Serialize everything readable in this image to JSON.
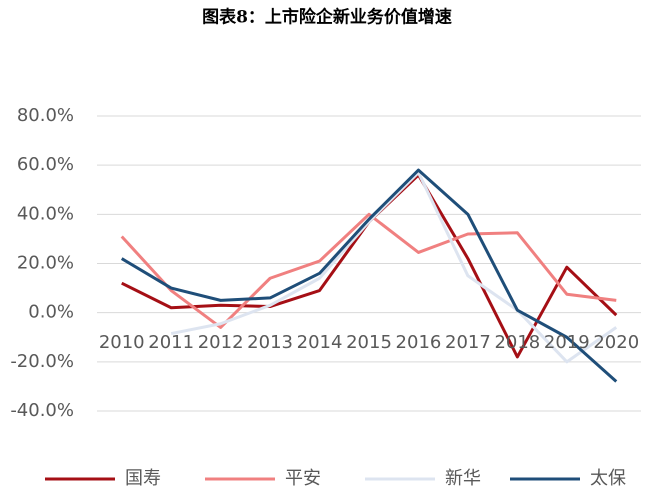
{
  "chart_data": {
    "type": "line",
    "title": "图表8：上市险企新业务价值增速",
    "categories": [
      "2010",
      "2011",
      "2012",
      "2013",
      "2014",
      "2015",
      "2016",
      "2017",
      "2018",
      "2019",
      "2020"
    ],
    "series": [
      {
        "name": "国寿",
        "color": "#a50f15",
        "values": [
          12,
          2,
          3,
          2.5,
          9,
          37,
          56,
          22,
          -18,
          18.5,
          -1
        ]
      },
      {
        "name": "平安",
        "color": "#f08080",
        "values": [
          31,
          9,
          -6,
          14,
          21,
          40,
          24.5,
          32,
          32.5,
          7.5,
          5
        ]
      },
      {
        "name": "新华",
        "color": "#dde4f0",
        "values": [
          null,
          -8.5,
          -4.5,
          3,
          14,
          37,
          57,
          15,
          1,
          -20,
          -6
        ]
      },
      {
        "name": "太保",
        "color": "#1f4e79",
        "values": [
          22,
          10,
          5,
          6,
          16,
          38,
          58,
          40,
          1,
          -10,
          -28
        ]
      }
    ],
    "ylim": [
      -40,
      80
    ],
    "yticks": [
      {
        "value": -40,
        "label": "-40.0%"
      },
      {
        "value": -20,
        "label": "-20.0%"
      },
      {
        "value": 0,
        "label": "0.0%"
      },
      {
        "value": 20,
        "label": "20.0%"
      },
      {
        "value": 40,
        "label": "40.0%"
      },
      {
        "value": 60,
        "label": "60.0%"
      },
      {
        "value": 80,
        "label": "80.0%"
      }
    ],
    "grid": true
  }
}
